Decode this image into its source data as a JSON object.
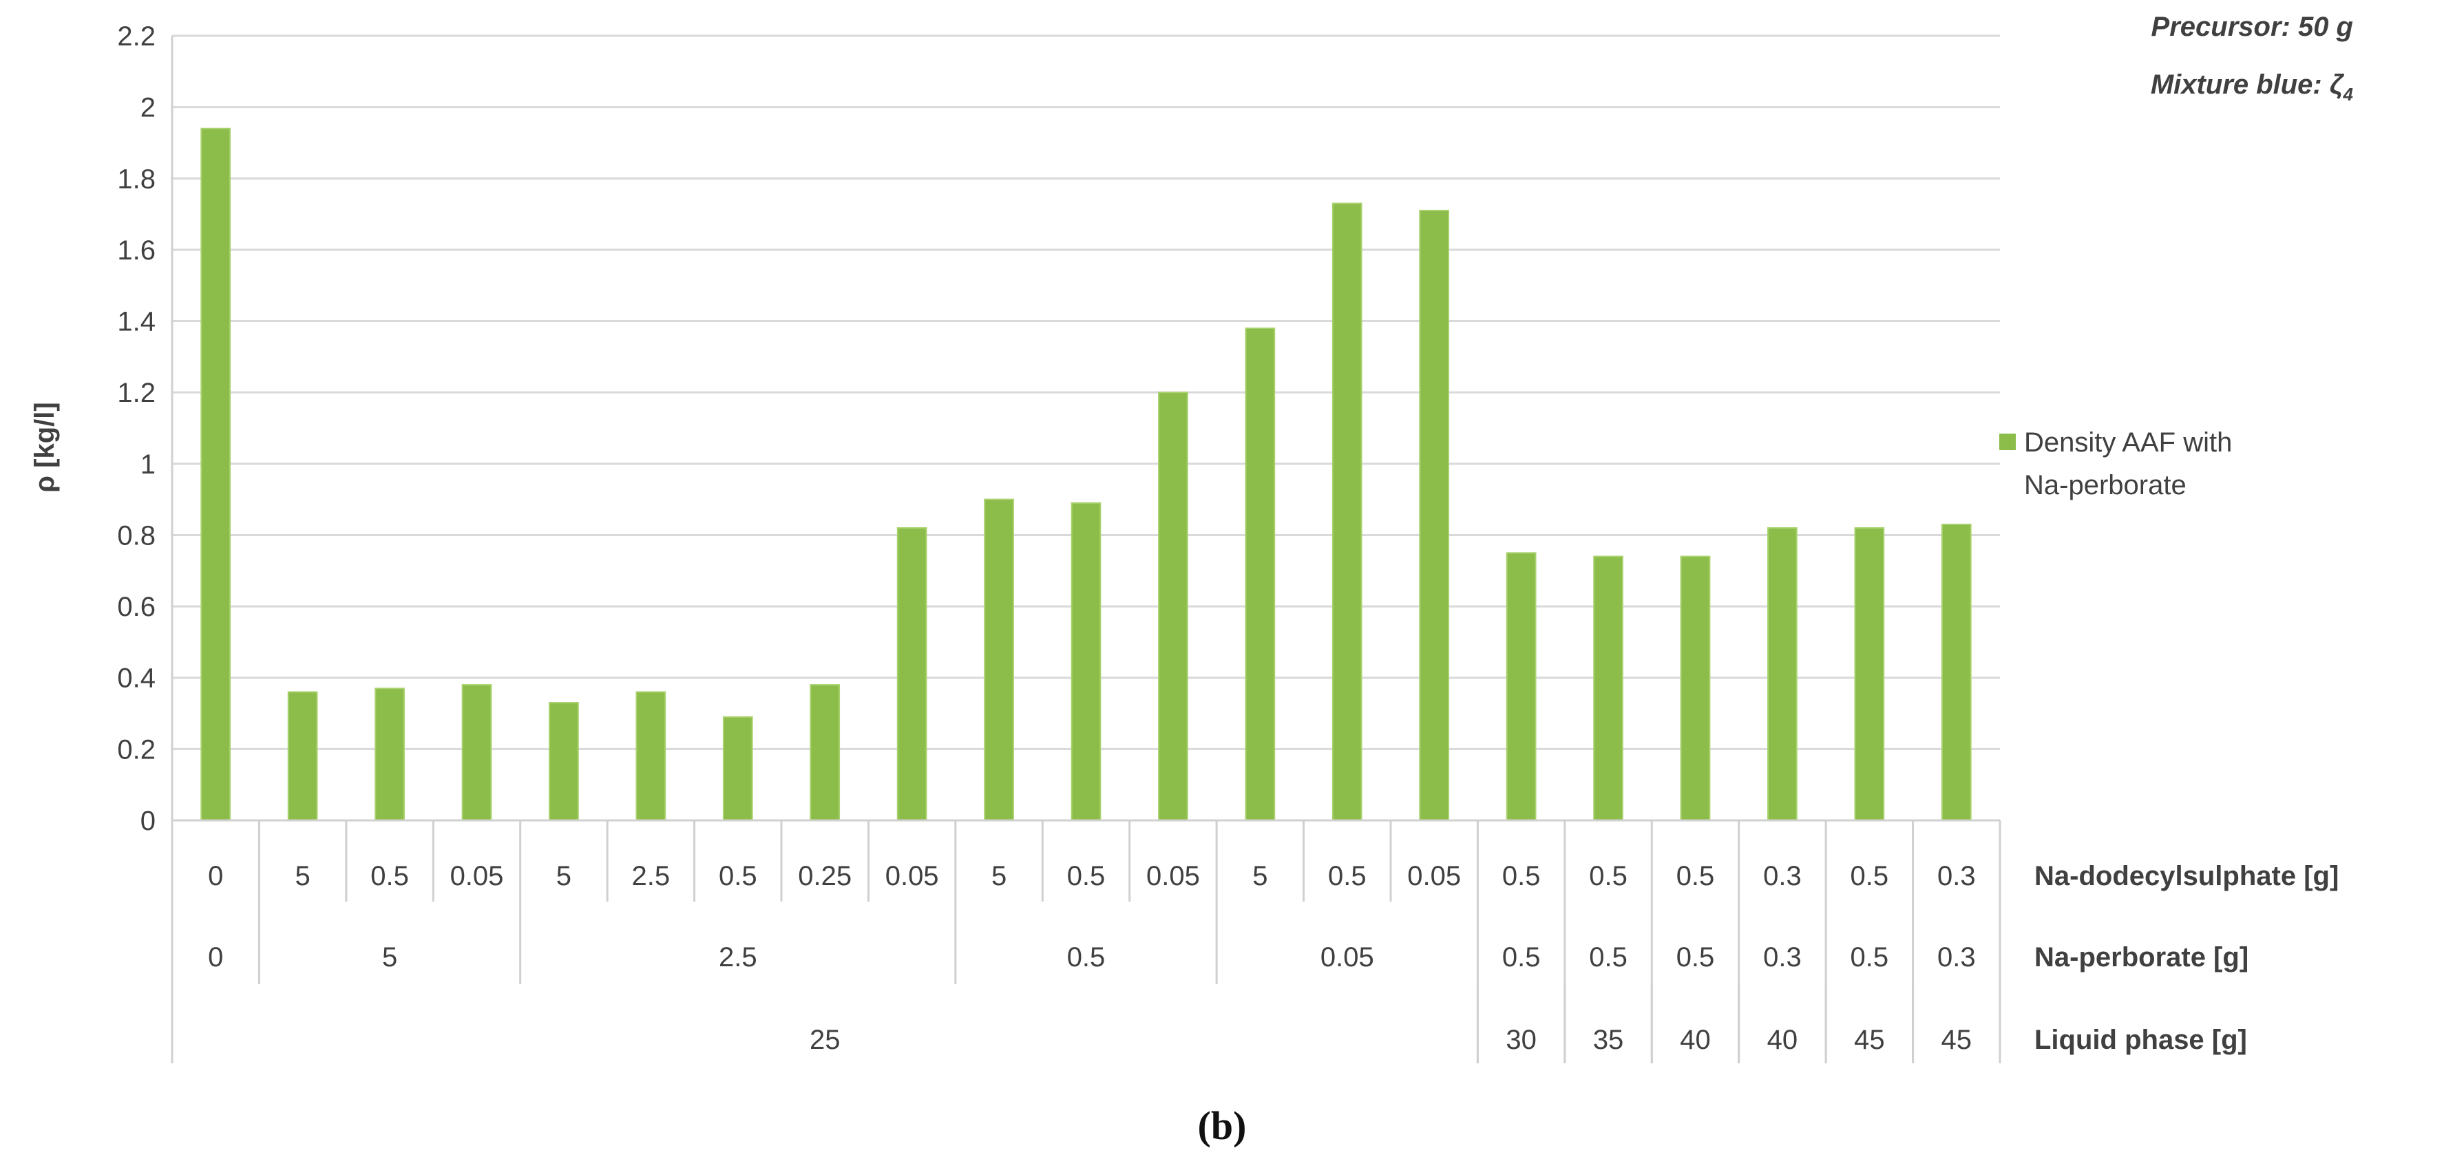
{
  "chart_data": {
    "type": "bar",
    "title": "",
    "xlabel": "",
    "ylabel": "ρ [kg/l]",
    "ylim": [
      0,
      2.2
    ],
    "yticks": [
      "0",
      "0.2",
      "0.4",
      "0.6",
      "0.8",
      "1",
      "1.2",
      "1.4",
      "1.6",
      "1.8",
      "2",
      "2.2"
    ],
    "grid": true,
    "legend_position": "right",
    "bar_color": "#8cbd4a",
    "annotations": [
      "Precursor: 50 g",
      "Mixture blue: ζ",
      "4"
    ],
    "panel_label": "(b)",
    "series": [
      {
        "name": "Density AAF with Na-perborate",
        "values": [
          1.94,
          0.36,
          0.37,
          0.38,
          0.33,
          0.36,
          0.29,
          0.38,
          0.82,
          0.9,
          0.89,
          1.2,
          1.38,
          1.73,
          1.71,
          0.75,
          0.74,
          0.74,
          0.82,
          0.82,
          0.83
        ]
      }
    ],
    "category_levels": [
      {
        "label": "Na-dodecylsulphate [g]",
        "groups": [
          {
            "text": "0",
            "span": 1
          },
          {
            "text": "5",
            "span": 1
          },
          {
            "text": "0.5",
            "span": 1
          },
          {
            "text": "0.05",
            "span": 1
          },
          {
            "text": "5",
            "span": 1
          },
          {
            "text": "2.5",
            "span": 1
          },
          {
            "text": "0.5",
            "span": 1
          },
          {
            "text": "0.25",
            "span": 1
          },
          {
            "text": "0.05",
            "span": 1
          },
          {
            "text": "5",
            "span": 1
          },
          {
            "text": "0.5",
            "span": 1
          },
          {
            "text": "0.05",
            "span": 1
          },
          {
            "text": "5",
            "span": 1
          },
          {
            "text": "0.5",
            "span": 1
          },
          {
            "text": "0.05",
            "span": 1
          },
          {
            "text": "0.5",
            "span": 1
          },
          {
            "text": "0.5",
            "span": 1
          },
          {
            "text": "0.5",
            "span": 1
          },
          {
            "text": "0.3",
            "span": 1
          },
          {
            "text": "0.5",
            "span": 1
          },
          {
            "text": "0.3",
            "span": 1
          }
        ]
      },
      {
        "label": "Na-perborate [g]",
        "groups": [
          {
            "text": "0",
            "span": 1
          },
          {
            "text": "5",
            "span": 3
          },
          {
            "text": "2.5",
            "span": 5
          },
          {
            "text": "0.5",
            "span": 3
          },
          {
            "text": "0.05",
            "span": 3
          },
          {
            "text": "0.5",
            "span": 1
          },
          {
            "text": "0.5",
            "span": 1
          },
          {
            "text": "0.5",
            "span": 1
          },
          {
            "text": "0.3",
            "span": 1
          },
          {
            "text": "0.5",
            "span": 1
          },
          {
            "text": "0.3",
            "span": 1
          }
        ]
      },
      {
        "label": "Liquid phase [g]",
        "groups": [
          {
            "text": "25",
            "span": 15
          },
          {
            "text": "30",
            "span": 1
          },
          {
            "text": "35",
            "span": 1
          },
          {
            "text": "40",
            "span": 1
          },
          {
            "text": "40",
            "span": 1
          },
          {
            "text": "45",
            "span": 1
          },
          {
            "text": "45",
            "span": 1
          }
        ]
      }
    ]
  }
}
